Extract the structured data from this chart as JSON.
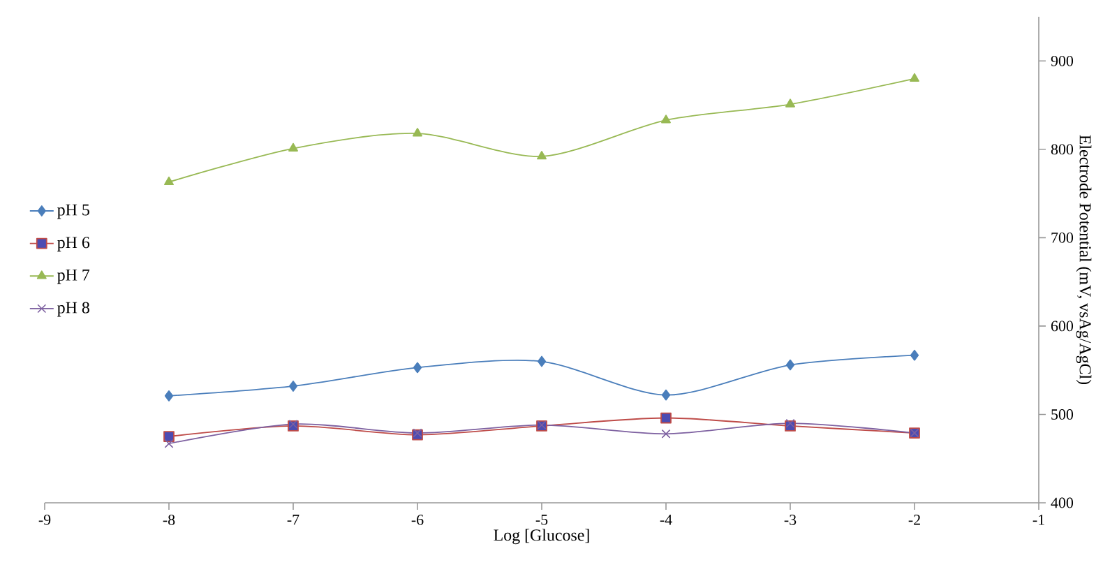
{
  "chart_data": {
    "type": "line",
    "xlabel": "Log [Glucose]",
    "y2label": "Electrode Potential (mV, vsAg/AgCl)",
    "x": [
      -8,
      -7,
      -6,
      -5,
      -4,
      -3,
      -2
    ],
    "xlim": [
      -9,
      -1
    ],
    "xticks": [
      -9,
      -8,
      -7,
      -6,
      -5,
      -4,
      -3,
      -2,
      -1
    ],
    "y2lim": [
      400,
      950
    ],
    "y2ticks": [
      400,
      500,
      600,
      700,
      800,
      900
    ],
    "legend": "left",
    "grid": false,
    "series": [
      {
        "name": "pH 5",
        "color": "#4a7ebb",
        "marker": "diamond",
        "axis": "y2",
        "values": [
          521,
          532,
          553,
          560,
          522,
          556,
          567
        ]
      },
      {
        "name": "pH 6",
        "color": "#be4b48",
        "marker": "square",
        "axis": "y2",
        "values": [
          475,
          487,
          477,
          487,
          496,
          487,
          479
        ]
      },
      {
        "name": "pH 7",
        "color": "#98b954",
        "marker": "triangle",
        "axis": "y2",
        "values": [
          763,
          801,
          818,
          792,
          833,
          851,
          880
        ]
      },
      {
        "name": "pH 8",
        "color": "#7d60a0",
        "marker": "cross",
        "axis": "y2",
        "values": [
          467,
          489,
          479,
          488,
          478,
          490,
          479
        ]
      }
    ]
  }
}
